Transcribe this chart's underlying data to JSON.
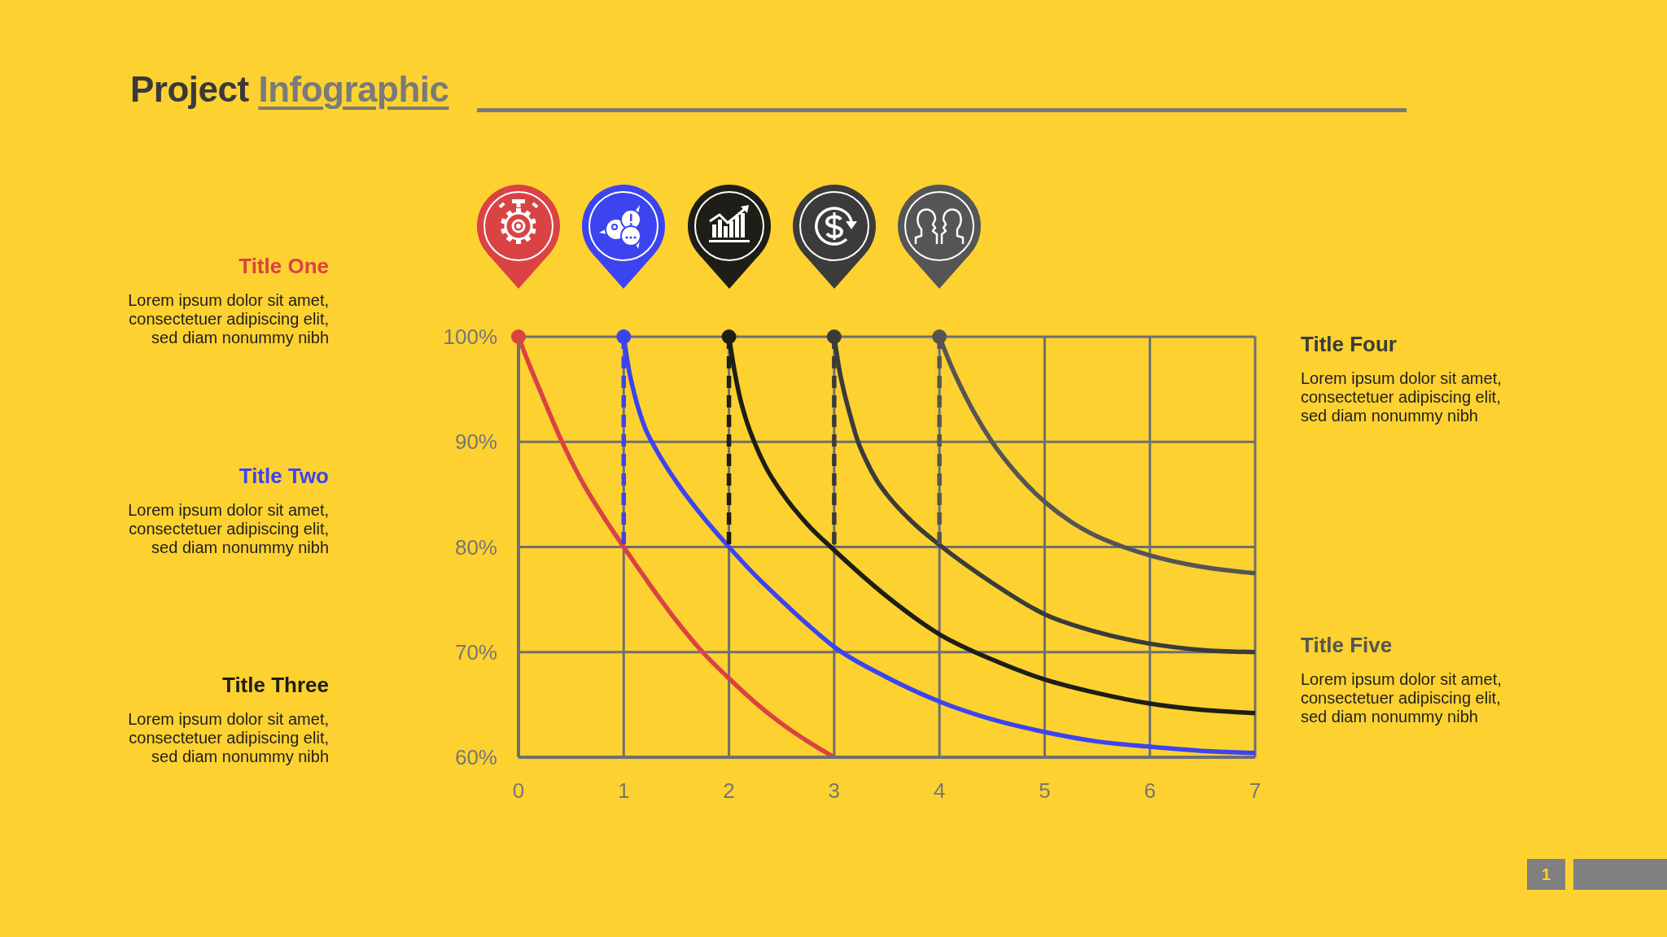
{
  "chart_data": {
    "type": "line",
    "title": "Project Infographic",
    "x": [
      0,
      1,
      2,
      3,
      4
    ],
    "series": [
      {
        "name": "Title One",
        "color": "#d94343",
        "x": [
          0,
          0.1,
          0.2,
          0.4,
          0.6,
          0.8,
          1,
          1.25,
          1.5,
          1.75,
          2,
          2.25,
          2.5,
          2.75,
          3
        ],
        "values": [
          100,
          97.4,
          95,
          90.3,
          86.3,
          83,
          80,
          76.4,
          73,
          70,
          67.5,
          65.2,
          63.2,
          61.5,
          60
        ]
      },
      {
        "name": "Title Two",
        "color": "#3c44ef",
        "x": [
          1,
          1.05,
          1.1,
          1.2,
          1.3,
          1.5,
          1.75,
          2,
          2.25,
          2.5,
          2.75,
          3,
          3.5,
          4,
          4.5,
          5,
          5.5,
          6,
          6.5,
          7
        ],
        "values": [
          100,
          96.8,
          94.6,
          91.4,
          89.4,
          86.2,
          82.9,
          80,
          77.3,
          74.9,
          72.6,
          70.5,
          67.6,
          65.3,
          63.6,
          62.4,
          61.5,
          61,
          60.6,
          60.4
        ]
      },
      {
        "name": "Title Three",
        "color": "#1f1e16",
        "x": [
          2,
          2.05,
          2.1,
          2.16,
          2.24,
          2.35,
          2.5,
          2.75,
          3,
          3.5,
          4,
          4.5,
          5,
          5.5,
          6,
          6.5,
          7
        ],
        "values": [
          100,
          96.9,
          94.4,
          92.2,
          90,
          87.6,
          85.2,
          82.1,
          79.7,
          75.3,
          71.7,
          69.3,
          67.4,
          66.1,
          65.1,
          64.5,
          64.2
        ]
      },
      {
        "name": "Title Four",
        "color": "#3b3b39",
        "x": [
          3,
          3.05,
          3.1,
          3.15,
          3.22,
          3.3,
          3.4,
          3.5,
          3.75,
          4,
          4.5,
          5,
          5.5,
          6,
          6.5,
          7
        ],
        "values": [
          100,
          96.8,
          94.5,
          92.6,
          90.2,
          88.3,
          86.4,
          85,
          82.3,
          80.2,
          76.6,
          73.6,
          71.9,
          70.8,
          70.2,
          70
        ]
      },
      {
        "name": "Title Five",
        "color": "#555555",
        "x": [
          4,
          4.1,
          4.25,
          4.5,
          4.75,
          5,
          5.25,
          5.5,
          5.75,
          6,
          6.5,
          7
        ],
        "values": [
          100,
          97.5,
          94.3,
          90,
          86.8,
          84.3,
          82.4,
          81,
          80,
          79.2,
          78.1,
          77.5
        ]
      },
      {
        "type": "line",
        "line_style": "dashed",
        "color": "#3c44ef",
        "x": [
          1,
          1
        ],
        "values": [
          100,
          80
        ]
      },
      {
        "type": "line",
        "line_style": "dashed",
        "color": "#1f1e16",
        "x": [
          2,
          2
        ],
        "values": [
          100,
          80
        ]
      },
      {
        "type": "line",
        "line_style": "dashed",
        "color": "#3b3b39",
        "x": [
          3,
          3
        ],
        "values": [
          100,
          79.7
        ]
      },
      {
        "type": "line",
        "line_style": "dashed",
        "color": "#555555",
        "x": [
          4,
          4
        ],
        "values": [
          100,
          80.2
        ]
      },
      {
        "type": "scatter",
        "marker": "circle",
        "values": [
          100,
          100,
          100,
          100,
          100
        ],
        "colors": [
          "#d94343",
          "#3c44ef",
          "#1f1e16",
          "#3b3b39",
          "#555555"
        ]
      }
    ],
    "xlim": [
      0,
      7
    ],
    "xticks": [
      0,
      1,
      2,
      3,
      4,
      5,
      6,
      7
    ],
    "ylim": [
      60,
      100
    ],
    "yticks": [
      {
        "value": 60,
        "label": "60%"
      },
      {
        "value": 70,
        "label": "70%"
      },
      {
        "value": 80,
        "label": "80%"
      },
      {
        "value": 90,
        "label": "90%"
      },
      {
        "value": 100,
        "label": "100%"
      }
    ],
    "grid": true,
    "marker": "none",
    "line_style": "solid",
    "annotations": [
      "Lorem ipsum dolor sit amet, consectetuer adipiscing elit, sed diam nonummy nibh",
      "Lorem ipsum dolor sit amet, consectetuer adipiscing elit, sed diam nonummy nibh",
      "Lorem ipsum dolor sit amet, consectetuer adipiscing elit, sed diam nonummy nibh",
      "Lorem ipsum dolor sit amet, consectetuer adipiscing elit, sed diam nonummy nibh",
      "Lorem ipsum dolor sit amet, consectetuer adipiscing elit, sed diam nonummy nibh",
      "1"
    ]
  }
}
